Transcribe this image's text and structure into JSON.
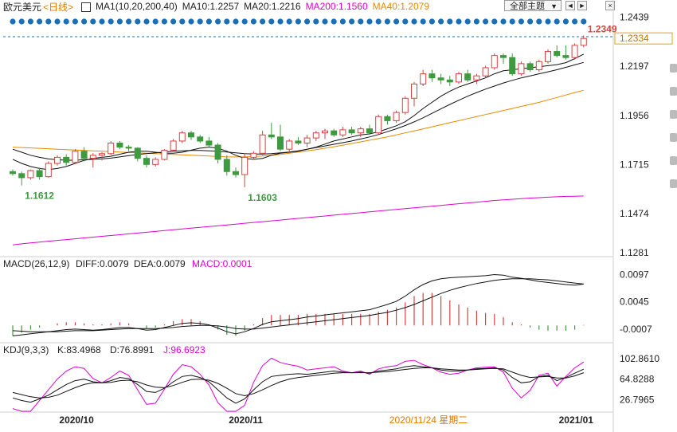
{
  "legend": {
    "symbol": "欧元美元",
    "period": "<日线>",
    "ma_label": "MA1(10,20,200,40)",
    "ma10": "MA10:1.2257",
    "ma20": "MA20:1.2216",
    "ma200": "MA200:1.1560",
    "ma40": "MA40:1.2079"
  },
  "toolbar": {
    "dropdown_label": "全部主题",
    "btn_prev": "◄",
    "btn_next": "►",
    "btn_close": "×"
  },
  "colors": {
    "up": "#d64141",
    "down": "#3f9a3f",
    "ma10": "#111111",
    "ma20": "#111111",
    "ma40": "#e88a00",
    "ma200": "#e000d0",
    "dots": "#1b6fb5",
    "price_tag_border": "#e8a000",
    "axis_text": "#222222",
    "k_line": "#111111",
    "d_line": "#111111",
    "j_line": "#e000d0",
    "diff": "#111111",
    "dea": "#111111"
  },
  "chart_data": [
    {
      "type": "candlestick",
      "title": "欧元美元 <日线>",
      "y_ticks": [
        "1.2439",
        "1.2197",
        "1.1956",
        "1.1715",
        "1.1474",
        "1.1281"
      ],
      "ylim": [
        1.127,
        1.246
      ],
      "current_price": "1.2334",
      "annotations": [
        {
          "text": "1.2349",
          "index": 64,
          "value": 1.2349
        },
        {
          "text": "1.1612",
          "index": 1,
          "value": 1.1612
        },
        {
          "text": "1.1603",
          "index": 26,
          "value": 1.1603
        }
      ],
      "x_labels": [
        {
          "text": "2020/10",
          "index": 7
        },
        {
          "text": "2020/11",
          "index": 26
        },
        {
          "text": "2020/11/24 星期二",
          "index": 44,
          "highlight": true
        },
        {
          "text": "2021/01",
          "index": 63
        }
      ],
      "candles": [
        [
          1.168,
          1.169,
          1.166,
          1.167
        ],
        [
          1.167,
          1.168,
          1.1612,
          1.165
        ],
        [
          1.165,
          1.169,
          1.164,
          1.1685
        ],
        [
          1.1685,
          1.17,
          1.164,
          1.1655
        ],
        [
          1.1655,
          1.173,
          1.165,
          1.172
        ],
        [
          1.172,
          1.176,
          1.171,
          1.175
        ],
        [
          1.175,
          1.1765,
          1.171,
          1.1725
        ],
        [
          1.1725,
          1.179,
          1.172,
          1.178
        ],
        [
          1.178,
          1.18,
          1.173,
          1.1745
        ],
        [
          1.1745,
          1.177,
          1.17,
          1.176
        ],
        [
          1.176,
          1.1775,
          1.1735,
          1.1768
        ],
        [
          1.1768,
          1.183,
          1.176,
          1.182
        ],
        [
          1.182,
          1.183,
          1.179,
          1.18
        ],
        [
          1.18,
          1.181,
          1.178,
          1.1795
        ],
        [
          1.1795,
          1.18,
          1.173,
          1.1745
        ],
        [
          1.1745,
          1.176,
          1.17,
          1.1715
        ],
        [
          1.1715,
          1.175,
          1.1705,
          1.174
        ],
        [
          1.174,
          1.179,
          1.1735,
          1.1785
        ],
        [
          1.1785,
          1.184,
          1.178,
          1.183
        ],
        [
          1.183,
          1.188,
          1.182,
          1.187
        ],
        [
          1.187,
          1.188,
          1.1835,
          1.185
        ],
        [
          1.185,
          1.186,
          1.182,
          1.183
        ],
        [
          1.183,
          1.185,
          1.18,
          1.181
        ],
        [
          1.181,
          1.182,
          1.172,
          1.174
        ],
        [
          1.174,
          1.176,
          1.166,
          1.168
        ],
        [
          1.168,
          1.17,
          1.165,
          1.1665
        ],
        [
          1.1665,
          1.177,
          1.1603,
          1.175
        ],
        [
          1.175,
          1.178,
          1.174,
          1.177
        ],
        [
          1.177,
          1.188,
          1.176,
          1.186
        ],
        [
          1.186,
          1.192,
          1.184,
          1.185
        ],
        [
          1.185,
          1.191,
          1.178,
          1.179
        ],
        [
          1.179,
          1.184,
          1.177,
          1.183
        ],
        [
          1.183,
          1.185,
          1.181,
          1.182
        ],
        [
          1.182,
          1.186,
          1.18,
          1.1845
        ],
        [
          1.1845,
          1.188,
          1.183,
          1.187
        ],
        [
          1.187,
          1.189,
          1.184,
          1.188
        ],
        [
          1.188,
          1.189,
          1.185,
          1.186
        ],
        [
          1.186,
          1.19,
          1.185,
          1.1885
        ],
        [
          1.1885,
          1.19,
          1.186,
          1.187
        ],
        [
          1.187,
          1.19,
          1.185,
          1.189
        ],
        [
          1.189,
          1.191,
          1.186,
          1.187
        ],
        [
          1.187,
          1.196,
          1.186,
          1.195
        ],
        [
          1.195,
          1.196,
          1.191,
          1.193
        ],
        [
          1.193,
          1.198,
          1.192,
          1.197
        ],
        [
          1.197,
          1.205,
          1.196,
          1.204
        ],
        [
          1.204,
          1.212,
          1.2,
          1.211
        ],
        [
          1.211,
          1.218,
          1.21,
          1.216
        ],
        [
          1.216,
          1.218,
          1.212,
          1.214
        ],
        [
          1.214,
          1.216,
          1.211,
          1.213
        ],
        [
          1.213,
          1.215,
          1.21,
          1.212
        ],
        [
          1.212,
          1.217,
          1.211,
          1.216
        ],
        [
          1.216,
          1.218,
          1.212,
          1.213
        ],
        [
          1.213,
          1.216,
          1.211,
          1.215
        ],
        [
          1.215,
          1.22,
          1.214,
          1.219
        ],
        [
          1.219,
          1.226,
          1.218,
          1.225
        ],
        [
          1.225,
          1.226,
          1.221,
          1.224
        ],
        [
          1.224,
          1.226,
          1.215,
          1.216
        ],
        [
          1.216,
          1.222,
          1.215,
          1.221
        ],
        [
          1.221,
          1.222,
          1.217,
          1.218
        ],
        [
          1.218,
          1.223,
          1.217,
          1.222
        ],
        [
          1.222,
          1.228,
          1.221,
          1.227
        ],
        [
          1.227,
          1.23,
          1.224,
          1.225
        ],
        [
          1.225,
          1.23,
          1.223,
          1.224
        ],
        [
          1.224,
          1.231,
          1.223,
          1.23
        ],
        [
          1.23,
          1.2349,
          1.229,
          1.2334
        ]
      ],
      "ma10": [
        1.174,
        1.172,
        1.1705,
        1.1695,
        1.169,
        1.1695,
        1.1705,
        1.172,
        1.1735,
        1.1745,
        1.175,
        1.1755,
        1.1765,
        1.1775,
        1.178,
        1.178,
        1.1775,
        1.177,
        1.177,
        1.1775,
        1.1785,
        1.1795,
        1.18,
        1.1795,
        1.178,
        1.176,
        1.1745,
        1.174,
        1.1745,
        1.176,
        1.177,
        1.1775,
        1.178,
        1.179,
        1.18,
        1.1815,
        1.183,
        1.184,
        1.185,
        1.186,
        1.1865,
        1.1875,
        1.189,
        1.1905,
        1.1925,
        1.1955,
        1.199,
        1.202,
        1.205,
        1.2075,
        1.2095,
        1.211,
        1.2125,
        1.214,
        1.216,
        1.2175,
        1.218,
        1.2185,
        1.219,
        1.2195,
        1.22,
        1.2205,
        1.2215,
        1.2235,
        1.2257
      ],
      "ma20": [
        1.179,
        1.1775,
        1.176,
        1.175,
        1.1742,
        1.1738,
        1.1736,
        1.1736,
        1.1738,
        1.174,
        1.1742,
        1.1746,
        1.1752,
        1.1758,
        1.1764,
        1.1768,
        1.1772,
        1.1776,
        1.178,
        1.1782,
        1.1784,
        1.1784,
        1.1782,
        1.178,
        1.1776,
        1.1772,
        1.1768,
        1.1766,
        1.1766,
        1.1768,
        1.1772,
        1.1776,
        1.1782,
        1.179,
        1.1798,
        1.1806,
        1.1814,
        1.1822,
        1.183,
        1.184,
        1.185,
        1.1862,
        1.1876,
        1.189,
        1.1906,
        1.1924,
        1.1944,
        1.1966,
        1.1988,
        1.201,
        1.203,
        1.205,
        1.2068,
        1.2085,
        1.21,
        1.2115,
        1.2128,
        1.214,
        1.215,
        1.216,
        1.217,
        1.218,
        1.2192,
        1.2204,
        1.2216
      ],
      "ma40": [
        1.18,
        1.1798,
        1.1796,
        1.1794,
        1.1792,
        1.179,
        1.1788,
        1.1786,
        1.1784,
        1.1782,
        1.178,
        1.1778,
        1.1776,
        1.1774,
        1.1772,
        1.177,
        1.1768,
        1.1766,
        1.1764,
        1.1762,
        1.176,
        1.1758,
        1.1756,
        1.1754,
        1.1752,
        1.1752,
        1.1752,
        1.1754,
        1.1756,
        1.176,
        1.1764,
        1.177,
        1.1776,
        1.1782,
        1.1788,
        1.1795,
        1.1802,
        1.181,
        1.1818,
        1.1826,
        1.1834,
        1.1842,
        1.185,
        1.186,
        1.187,
        1.188,
        1.189,
        1.19,
        1.191,
        1.192,
        1.193,
        1.194,
        1.195,
        1.196,
        1.197,
        1.198,
        1.199,
        1.2,
        1.201,
        1.202,
        1.2032,
        1.2044,
        1.2056,
        1.2068,
        1.2079
      ],
      "ma200": [
        1.132,
        1.1325,
        1.133,
        1.1334,
        1.1338,
        1.1342,
        1.1346,
        1.135,
        1.1354,
        1.1358,
        1.1362,
        1.1366,
        1.137,
        1.1374,
        1.1378,
        1.1382,
        1.1386,
        1.139,
        1.1394,
        1.1398,
        1.1402,
        1.1406,
        1.141,
        1.1414,
        1.1418,
        1.1422,
        1.1426,
        1.143,
        1.1434,
        1.1438,
        1.1442,
        1.1446,
        1.145,
        1.1454,
        1.1458,
        1.1462,
        1.1466,
        1.147,
        1.1474,
        1.1478,
        1.1482,
        1.1486,
        1.149,
        1.1494,
        1.1498,
        1.1502,
        1.1506,
        1.151,
        1.1514,
        1.1518,
        1.1522,
        1.1526,
        1.153,
        1.1534,
        1.1538,
        1.1541,
        1.1544,
        1.1547,
        1.155,
        1.1552,
        1.1554,
        1.1556,
        1.1558,
        1.1559,
        1.156
      ]
    },
    {
      "type": "macd",
      "title": "MACD(26,12,9)",
      "diff_label": "DIFF:0.0079",
      "dea_label": "DEA:0.0079",
      "macd_label": "MACD:0.0001",
      "y_ticks": [
        "0.0097",
        "0.0045",
        "-0.0007"
      ],
      "ylim": [
        -0.003,
        0.011
      ],
      "diff": [
        -0.002,
        -0.0018,
        -0.0016,
        -0.0014,
        -0.0012,
        -0.001,
        -0.0008,
        -0.0007,
        -0.0008,
        -0.0009,
        -0.0008,
        -0.0006,
        -0.0004,
        -0.0004,
        -0.0006,
        -0.0009,
        -0.0008,
        -0.0004,
        0.0,
        0.0004,
        0.0005,
        0.0004,
        0.0001,
        -0.0005,
        -0.0012,
        -0.0016,
        -0.0012,
        -0.0006,
        0.0002,
        0.0007,
        0.0009,
        0.0011,
        0.0013,
        0.0016,
        0.0018,
        0.002,
        0.0022,
        0.0024,
        0.0026,
        0.0028,
        0.003,
        0.0035,
        0.004,
        0.0046,
        0.0056,
        0.0068,
        0.0078,
        0.0085,
        0.0089,
        0.0091,
        0.0092,
        0.0093,
        0.0094,
        0.0095,
        0.0097,
        0.0096,
        0.0092,
        0.009,
        0.0087,
        0.0084,
        0.0082,
        0.008,
        0.0078,
        0.0077,
        0.0079
      ],
      "dea": [
        -0.001,
        -0.0011,
        -0.0012,
        -0.0012,
        -0.0012,
        -0.0012,
        -0.0011,
        -0.001,
        -0.001,
        -0.001,
        -0.0009,
        -0.0008,
        -0.0007,
        -0.0006,
        -0.0006,
        -0.0006,
        -0.0006,
        -0.0005,
        -0.0004,
        -0.0002,
        -0.0001,
        0.0,
        0.0,
        -0.0001,
        -0.0003,
        -0.0006,
        -0.0007,
        -0.0007,
        -0.0005,
        -0.0003,
        -0.0001,
        0.0001,
        0.0003,
        0.0005,
        0.0007,
        0.0009,
        0.0011,
        0.0013,
        0.0015,
        0.0017,
        0.0019,
        0.0022,
        0.0025,
        0.0029,
        0.0034,
        0.004,
        0.0047,
        0.0054,
        0.0061,
        0.0067,
        0.0072,
        0.0076,
        0.008,
        0.0083,
        0.0086,
        0.0088,
        0.0089,
        0.0089,
        0.0089,
        0.0088,
        0.0087,
        0.0085,
        0.0083,
        0.0081,
        0.0079
      ],
      "macd": [
        -0.002,
        -0.0014,
        -0.0008,
        -0.0004,
        0.0,
        0.0004,
        0.0006,
        0.0006,
        0.0004,
        0.0002,
        0.0002,
        0.0004,
        0.0006,
        0.0004,
        0.0,
        -0.0006,
        -0.0004,
        0.0002,
        0.0008,
        0.0012,
        0.0012,
        0.0008,
        0.0002,
        -0.0008,
        -0.0018,
        -0.002,
        -0.001,
        0.0002,
        0.0014,
        0.002,
        0.002,
        0.002,
        0.002,
        0.0022,
        0.0022,
        0.0022,
        0.0022,
        0.0022,
        0.0022,
        0.0022,
        0.0022,
        0.0026,
        0.003,
        0.0034,
        0.0044,
        0.0056,
        0.0062,
        0.0062,
        0.0056,
        0.0048,
        0.004,
        0.0034,
        0.0028,
        0.0024,
        0.0022,
        0.0016,
        0.0006,
        0.0002,
        -0.0004,
        -0.0008,
        -0.001,
        -0.001,
        -0.001,
        -0.0008,
        0.0001
      ]
    },
    {
      "type": "kdj",
      "title": "KDJ(9,3,3)",
      "k_label": "K:83.4968",
      "d_label": "D:76.8991",
      "j_label": "J:96.6923",
      "y_ticks": [
        "102.8610",
        "64.8288",
        "26.7965"
      ],
      "ylim": [
        5,
        112
      ],
      "k": [
        30,
        25,
        22,
        28,
        35,
        45,
        55,
        62,
        65,
        60,
        58,
        62,
        68,
        66,
        55,
        42,
        40,
        48,
        60,
        70,
        72,
        68,
        60,
        45,
        30,
        20,
        28,
        45,
        60,
        70,
        72,
        74,
        75,
        74,
        76,
        78,
        80,
        78,
        77,
        78,
        76,
        80,
        82,
        84,
        88,
        90,
        88,
        86,
        82,
        80,
        80,
        82,
        84,
        85,
        86,
        82,
        68,
        58,
        60,
        70,
        72,
        62,
        68,
        76,
        83.4968
      ],
      "d": [
        40,
        36,
        32,
        30,
        31,
        35,
        42,
        49,
        55,
        58,
        58,
        59,
        62,
        63,
        60,
        54,
        50,
        49,
        53,
        59,
        64,
        65,
        63,
        57,
        48,
        38,
        34,
        38,
        45,
        53,
        60,
        65,
        68,
        70,
        72,
        74,
        76,
        77,
        77,
        77,
        77,
        78,
        79,
        81,
        83,
        85,
        86,
        86,
        84,
        83,
        82,
        82,
        83,
        84,
        85,
        84,
        78,
        72,
        68,
        69,
        70,
        67,
        67,
        71,
        76.8991
      ],
      "j": [
        10,
        5,
        2,
        25,
        45,
        65,
        80,
        88,
        85,
        66,
        58,
        68,
        80,
        72,
        45,
        18,
        20,
        46,
        74,
        92,
        88,
        74,
        54,
        21,
        -6,
        -16,
        16,
        59,
        90,
        104,
        96,
        92,
        89,
        82,
        84,
        86,
        88,
        80,
        77,
        80,
        74,
        84,
        88,
        90,
        98,
        100,
        92,
        86,
        78,
        74,
        76,
        82,
        86,
        87,
        88,
        78,
        48,
        30,
        44,
        72,
        76,
        52,
        70,
        86,
        96.6923
      ]
    }
  ]
}
